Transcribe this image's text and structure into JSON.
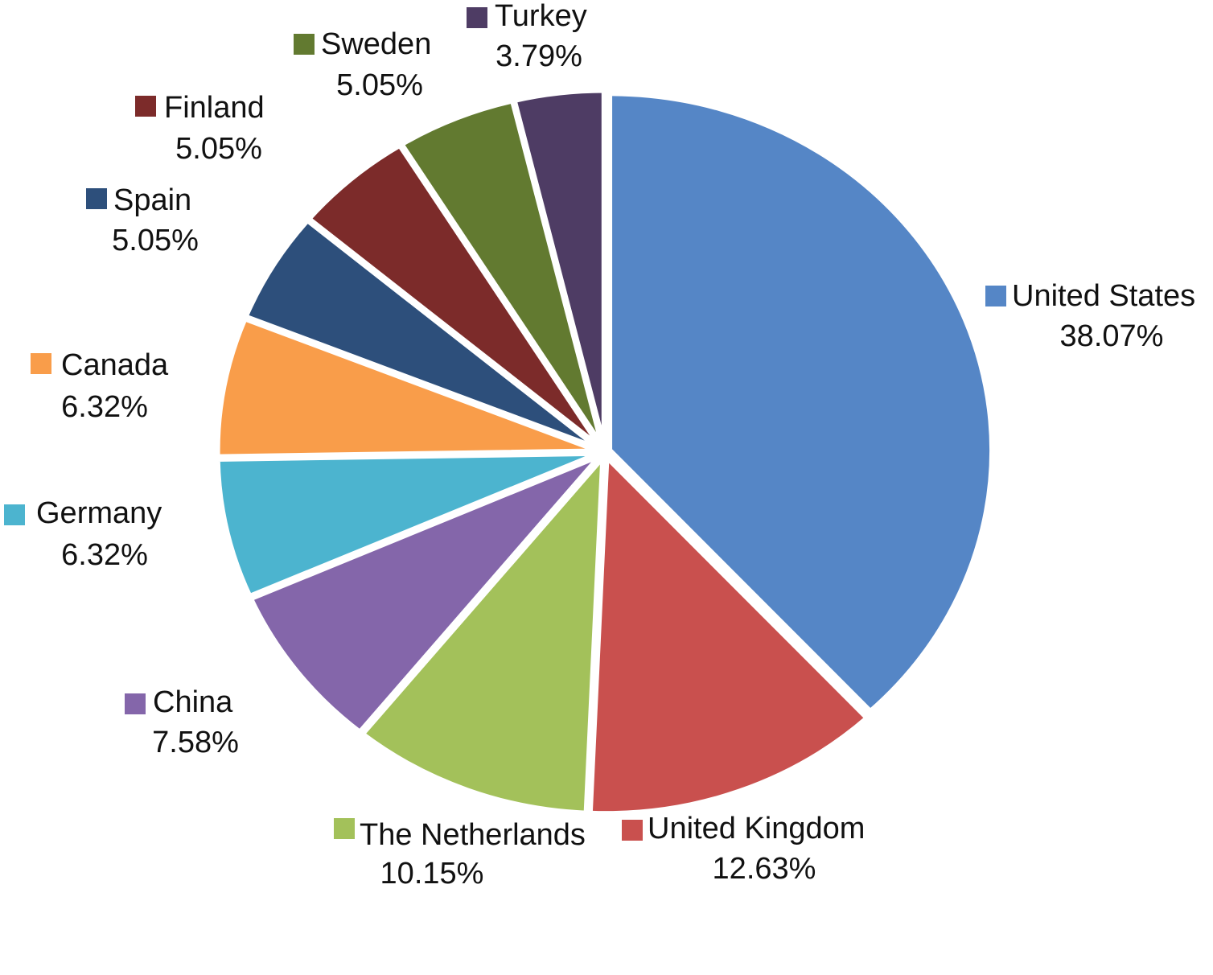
{
  "chart_data": {
    "type": "pie",
    "categories": [
      "United States",
      "United Kingdom",
      "The Netherlands",
      "China",
      "Germany",
      "Canada",
      "Spain",
      "Finland",
      "Sweden",
      "Turkey"
    ],
    "values": [
      38.07,
      12.63,
      10.15,
      7.58,
      6.32,
      6.32,
      5.05,
      5.05,
      5.05,
      3.79
    ],
    "value_labels": [
      "38.07%",
      "12.63%",
      "10.15%",
      "7.58%",
      "6.32%",
      "6.32%",
      "5.05%",
      "5.05%",
      "5.05%",
      "3.79%"
    ],
    "colors": [
      "#5586c6",
      "#c9504e",
      "#a3c15a",
      "#8466aa",
      "#4cb4cf",
      "#f99d4a",
      "#2d4f7b",
      "#7c2b2a",
      "#627a30",
      "#4e3c64"
    ]
  }
}
